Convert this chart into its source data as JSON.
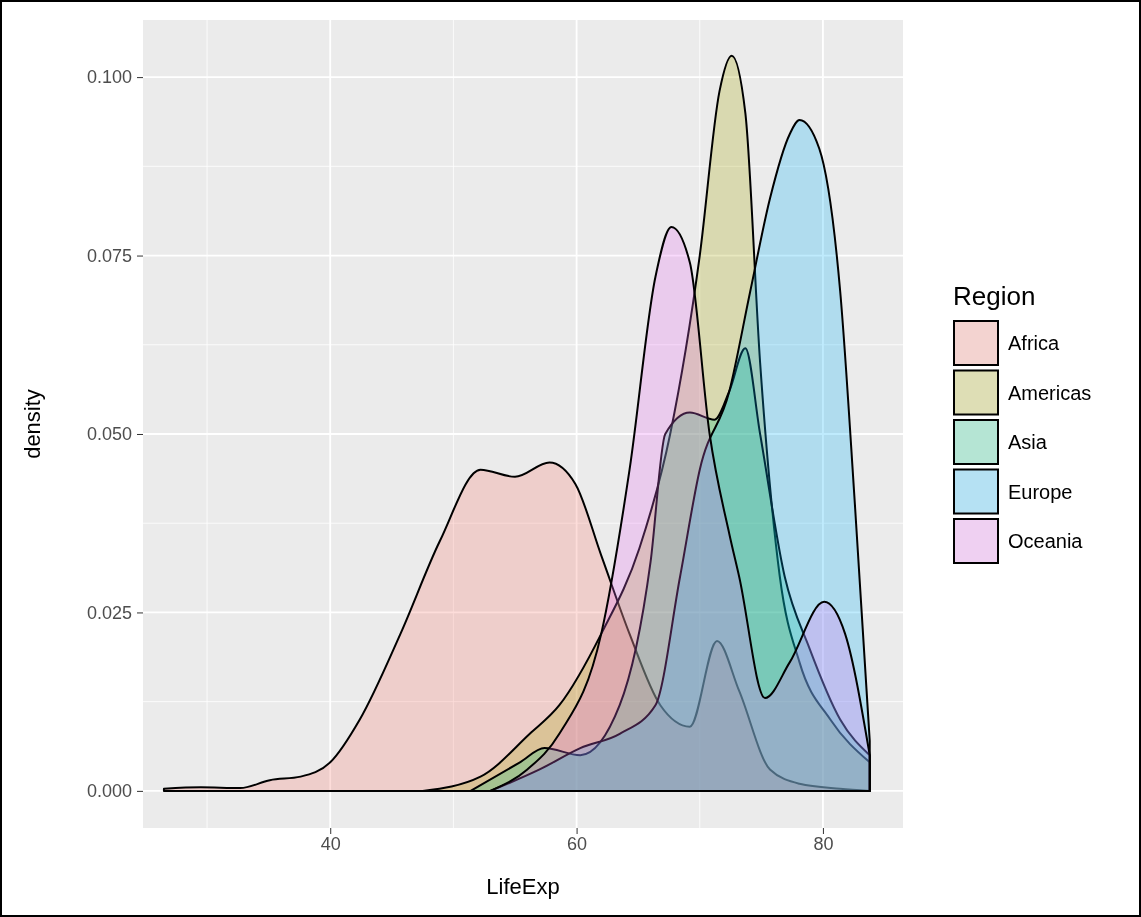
{
  "chart_data": {
    "type": "area",
    "xlabel": "LifeExp",
    "ylabel": "density",
    "legend_title": "Region",
    "legend": "right",
    "grid": true,
    "xlim": [
      24.8,
      86.5
    ],
    "xticks": [
      40,
      60,
      80
    ],
    "ylim": [
      -0.0052,
      0.108
    ],
    "yticks": [
      {
        "value": 0,
        "label": "0.000"
      },
      {
        "value": 0.025,
        "label": "0.025"
      },
      {
        "value": 0.05,
        "label": "0.050"
      },
      {
        "value": 0.075,
        "label": "0.075"
      },
      {
        "value": 0.1,
        "label": "0.100"
      }
    ],
    "series": [
      {
        "name": "Africa",
        "color": "#f8766d",
        "x": [
          26.5,
          29.5,
          32.7,
          35.1,
          37.6,
          40,
          42.4,
          45.7,
          48.9,
          52.2,
          55,
          57.8,
          59.9,
          62,
          64.3,
          66.8,
          69.2,
          71.4,
          73.2,
          75.7,
          78.1,
          81.4,
          83.8
        ],
        "values": [
          0.0003,
          0.0005,
          0.0004,
          0.0015,
          0.002,
          0.004,
          0.01,
          0.022,
          0.035,
          0.045,
          0.044,
          0.046,
          0.043,
          0.033,
          0.022,
          0.012,
          0.009,
          0.021,
          0.014,
          0.003,
          0.001,
          0.0003,
          0
        ]
      },
      {
        "name": "Americas",
        "color": "#a3a500",
        "x": [
          47.5,
          52.2,
          56.2,
          58.6,
          62,
          65.1,
          67.6,
          70,
          71.6,
          72.6,
          73.7,
          74.9,
          76.5,
          78.1,
          80.6,
          83.8
        ],
        "values": [
          0,
          0.002,
          0.008,
          0.012,
          0.022,
          0.034,
          0.05,
          0.075,
          0.098,
          0.103,
          0.095,
          0.06,
          0.03,
          0.018,
          0.01,
          0.004
        ]
      },
      {
        "name": "Asia",
        "color": "#00bf7d",
        "x": [
          51.4,
          55.4,
          57.4,
          60.3,
          63.5,
          66,
          67.2,
          69.2,
          71.2,
          72.4,
          73.7,
          74.9,
          76.9,
          78.9,
          81.4,
          83.8
        ],
        "values": [
          0,
          0.004,
          0.006,
          0.005,
          0.012,
          0.032,
          0.05,
          0.053,
          0.052,
          0.056,
          0.062,
          0.05,
          0.03,
          0.02,
          0.01,
          0.005
        ]
      },
      {
        "name": "Europe",
        "color": "#00b0f6",
        "x": [
          53,
          57,
          60.3,
          63.5,
          66.4,
          68.4,
          70,
          72.4,
          74.1,
          75.7,
          77.3,
          78.1,
          79.7,
          81.4,
          82.6,
          83.8
        ],
        "values": [
          0,
          0.003,
          0.006,
          0.008,
          0.012,
          0.03,
          0.045,
          0.056,
          0.07,
          0.083,
          0.092,
          0.094,
          0.09,
          0.07,
          0.04,
          0.007
        ]
      },
      {
        "name": "Oceania",
        "color": "#e76bf3",
        "x": [
          53,
          56,
          58.6,
          62,
          64.3,
          66.4,
          67.7,
          69.2,
          70.8,
          72.4,
          73.2,
          75.3,
          77.3,
          80.1,
          81.8,
          83.8
        ],
        "values": [
          0,
          0.003,
          0.008,
          0.022,
          0.045,
          0.072,
          0.079,
          0.074,
          0.05,
          0.036,
          0.03,
          0.013,
          0.018,
          0.0265,
          0.022,
          0.005
        ]
      }
    ]
  }
}
